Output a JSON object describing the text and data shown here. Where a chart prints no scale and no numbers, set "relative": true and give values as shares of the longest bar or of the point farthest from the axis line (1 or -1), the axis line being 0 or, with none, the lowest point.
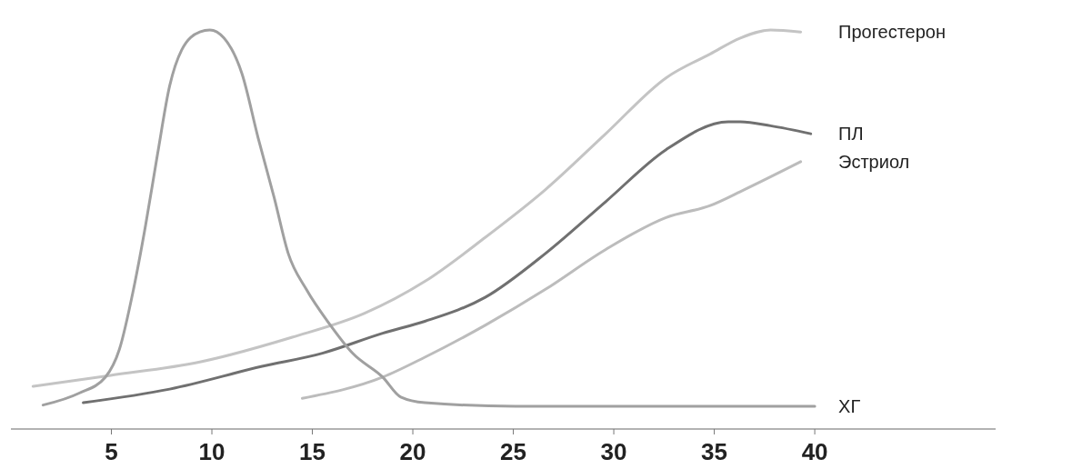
{
  "chart_data": {
    "type": "line",
    "relative": true,
    "xlim": [
      0,
      49
    ],
    "xticks": [
      5,
      10,
      15,
      20,
      25,
      30,
      35,
      40
    ],
    "grid": false,
    "legend": false,
    "line_style": "solid",
    "marker": "none",
    "series": [
      {
        "name": "Прогестерон",
        "color": "#c4c4c4",
        "x": [
          1.1,
          4.9,
          9.4,
          14.0,
          17.6,
          20.6,
          23.6,
          26.6,
          29.6,
          32.6,
          34.8,
          36.3,
          37.8,
          39.3
        ],
        "values": [
          0.107,
          0.134,
          0.168,
          0.23,
          0.29,
          0.37,
          0.48,
          0.6,
          0.74,
          0.88,
          0.94,
          0.98,
          1.0,
          0.995
        ]
      },
      {
        "name": "ПЛ",
        "color": "#707070",
        "x": [
          3.6,
          7.9,
          12.5,
          15.5,
          18.5,
          20.6,
          23.6,
          26.6,
          29.6,
          32.6,
          35.7,
          36.3,
          37.8,
          39.8
        ],
        "values": [
          0.066,
          0.1,
          0.157,
          0.19,
          0.24,
          0.27,
          0.33,
          0.44,
          0.57,
          0.7,
          0.77,
          0.77,
          0.76,
          0.74
        ]
      },
      {
        "name": "Эстриол",
        "color": "#bcbcbc",
        "x": [
          14.5,
          18.5,
          20.6,
          23.6,
          26.6,
          29.6,
          32.6,
          34.8,
          36.5,
          39.3
        ],
        "values": [
          0.077,
          0.13,
          0.18,
          0.26,
          0.35,
          0.45,
          0.53,
          0.56,
          0.6,
          0.67
        ]
      },
      {
        "name": "ХГ",
        "color": "#a0a0a0",
        "x": [
          1.6,
          3.4,
          4.7,
          5.4,
          6.1,
          6.7,
          7.3,
          7.9,
          8.5,
          9.4,
          9.9,
          10.6,
          11.5,
          12.3,
          13.1,
          13.8,
          14.7,
          15.9,
          17.0,
          18.5,
          19.4,
          20.6,
          25.1,
          32.0,
          40.0
        ],
        "values": [
          0.06,
          0.09,
          0.13,
          0.2,
          0.35,
          0.51,
          0.69,
          0.86,
          0.95,
          0.995,
          1.0,
          0.98,
          0.89,
          0.73,
          0.58,
          0.44,
          0.35,
          0.26,
          0.19,
          0.13,
          0.08,
          0.066,
          0.057,
          0.057,
          0.057
        ]
      }
    ]
  }
}
